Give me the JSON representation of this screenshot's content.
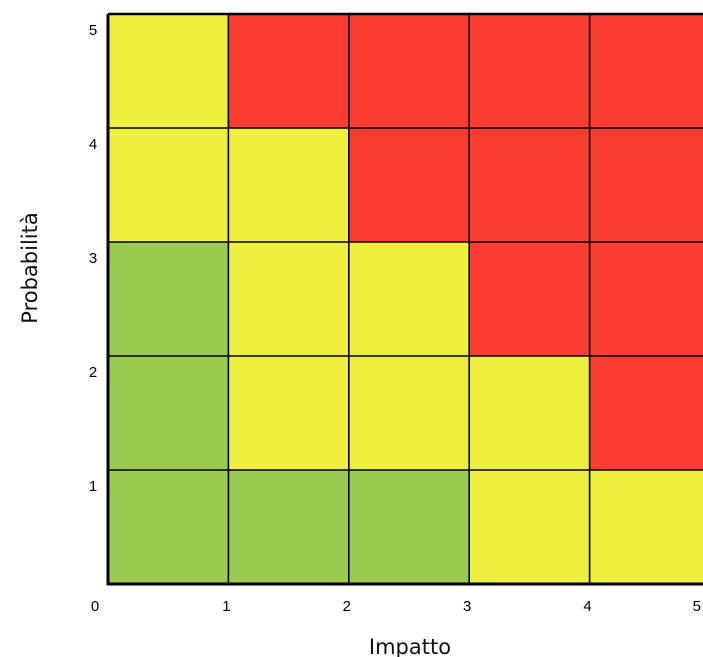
{
  "chart_data": {
    "type": "heatmap",
    "title": "",
    "xlabel": "Impatto",
    "ylabel": "Probabilità",
    "x_ticks": [
      "0",
      "1",
      "2",
      "3",
      "4",
      "5"
    ],
    "y_ticks": [
      "1",
      "2",
      "3",
      "4",
      "5"
    ],
    "xlim": [
      0,
      5
    ],
    "ylim": [
      0,
      5
    ],
    "grid": true,
    "legend": "none",
    "colors": {
      "low": "#9acb50",
      "medium": "#eeee3c",
      "high": "#fa3d30",
      "border": "#000000"
    },
    "cells_top_to_bottom": [
      [
        "medium",
        "high",
        "high",
        "high",
        "high"
      ],
      [
        "medium",
        "medium",
        "high",
        "high",
        "high"
      ],
      [
        "low",
        "medium",
        "medium",
        "high",
        "high"
      ],
      [
        "low",
        "medium",
        "medium",
        "medium",
        "high"
      ],
      [
        "low",
        "low",
        "low",
        "medium",
        "medium"
      ]
    ]
  }
}
